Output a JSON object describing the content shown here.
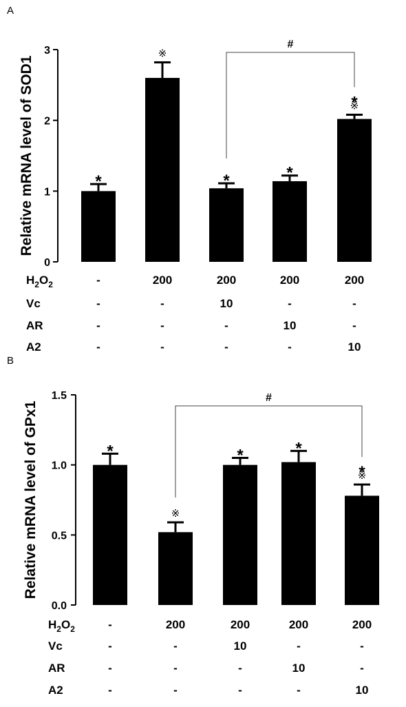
{
  "chart_data": [
    {
      "type": "bar",
      "panel": "A",
      "ylabel": "Relative mRNA level of SOD1",
      "ylim": [
        0,
        3
      ],
      "yticks": [
        "0",
        "1",
        "2",
        "3"
      ],
      "categories": [
        "1",
        "2",
        "3",
        "4",
        "5"
      ],
      "values": [
        1.0,
        2.6,
        1.04,
        1.14,
        2.02
      ],
      "errors": [
        0.1,
        0.22,
        0.07,
        0.08,
        0.06
      ],
      "stars": [
        "*",
        "",
        "*",
        "*",
        "*"
      ],
      "refmarks": [
        "",
        "※",
        "",
        "",
        "※"
      ],
      "bracket": {
        "from": 2,
        "to": 4,
        "label": "#"
      },
      "conditions": [
        {
          "label": "H2O2",
          "values": [
            "-",
            "200",
            "200",
            "200",
            "200"
          ]
        },
        {
          "label": "Vc",
          "values": [
            "-",
            "-",
            "10",
            "-",
            "-"
          ]
        },
        {
          "label": "AR",
          "values": [
            "-",
            "-",
            "-",
            "10",
            "-"
          ]
        },
        {
          "label": "A2",
          "values": [
            "-",
            "-",
            "-",
            "-",
            "10"
          ]
        }
      ]
    },
    {
      "type": "bar",
      "panel": "B",
      "ylabel": "Relative mRNA level of GPx1",
      "ylim": [
        0,
        1.5
      ],
      "yticks": [
        "0.0",
        "0.5",
        "1.0",
        "1.5"
      ],
      "categories": [
        "1",
        "2",
        "3",
        "4",
        "5"
      ],
      "values": [
        1.0,
        0.52,
        1.0,
        1.02,
        0.78
      ],
      "errors": [
        0.08,
        0.07,
        0.05,
        0.08,
        0.08
      ],
      "stars": [
        "*",
        "",
        "*",
        "*",
        "*"
      ],
      "refmarks": [
        "",
        "※",
        "",
        "",
        "※"
      ],
      "bracket": {
        "from": 1,
        "to": 4,
        "label": "#"
      },
      "conditions": [
        {
          "label": "H2O2",
          "values": [
            "-",
            "200",
            "200",
            "200",
            "200"
          ]
        },
        {
          "label": "Vc",
          "values": [
            "-",
            "-",
            "10",
            "-",
            "-"
          ]
        },
        {
          "label": "AR",
          "values": [
            "-",
            "-",
            "-",
            "10",
            "-"
          ]
        },
        {
          "label": "A2",
          "values": [
            "-",
            "-",
            "-",
            "-",
            "10"
          ]
        }
      ]
    }
  ]
}
